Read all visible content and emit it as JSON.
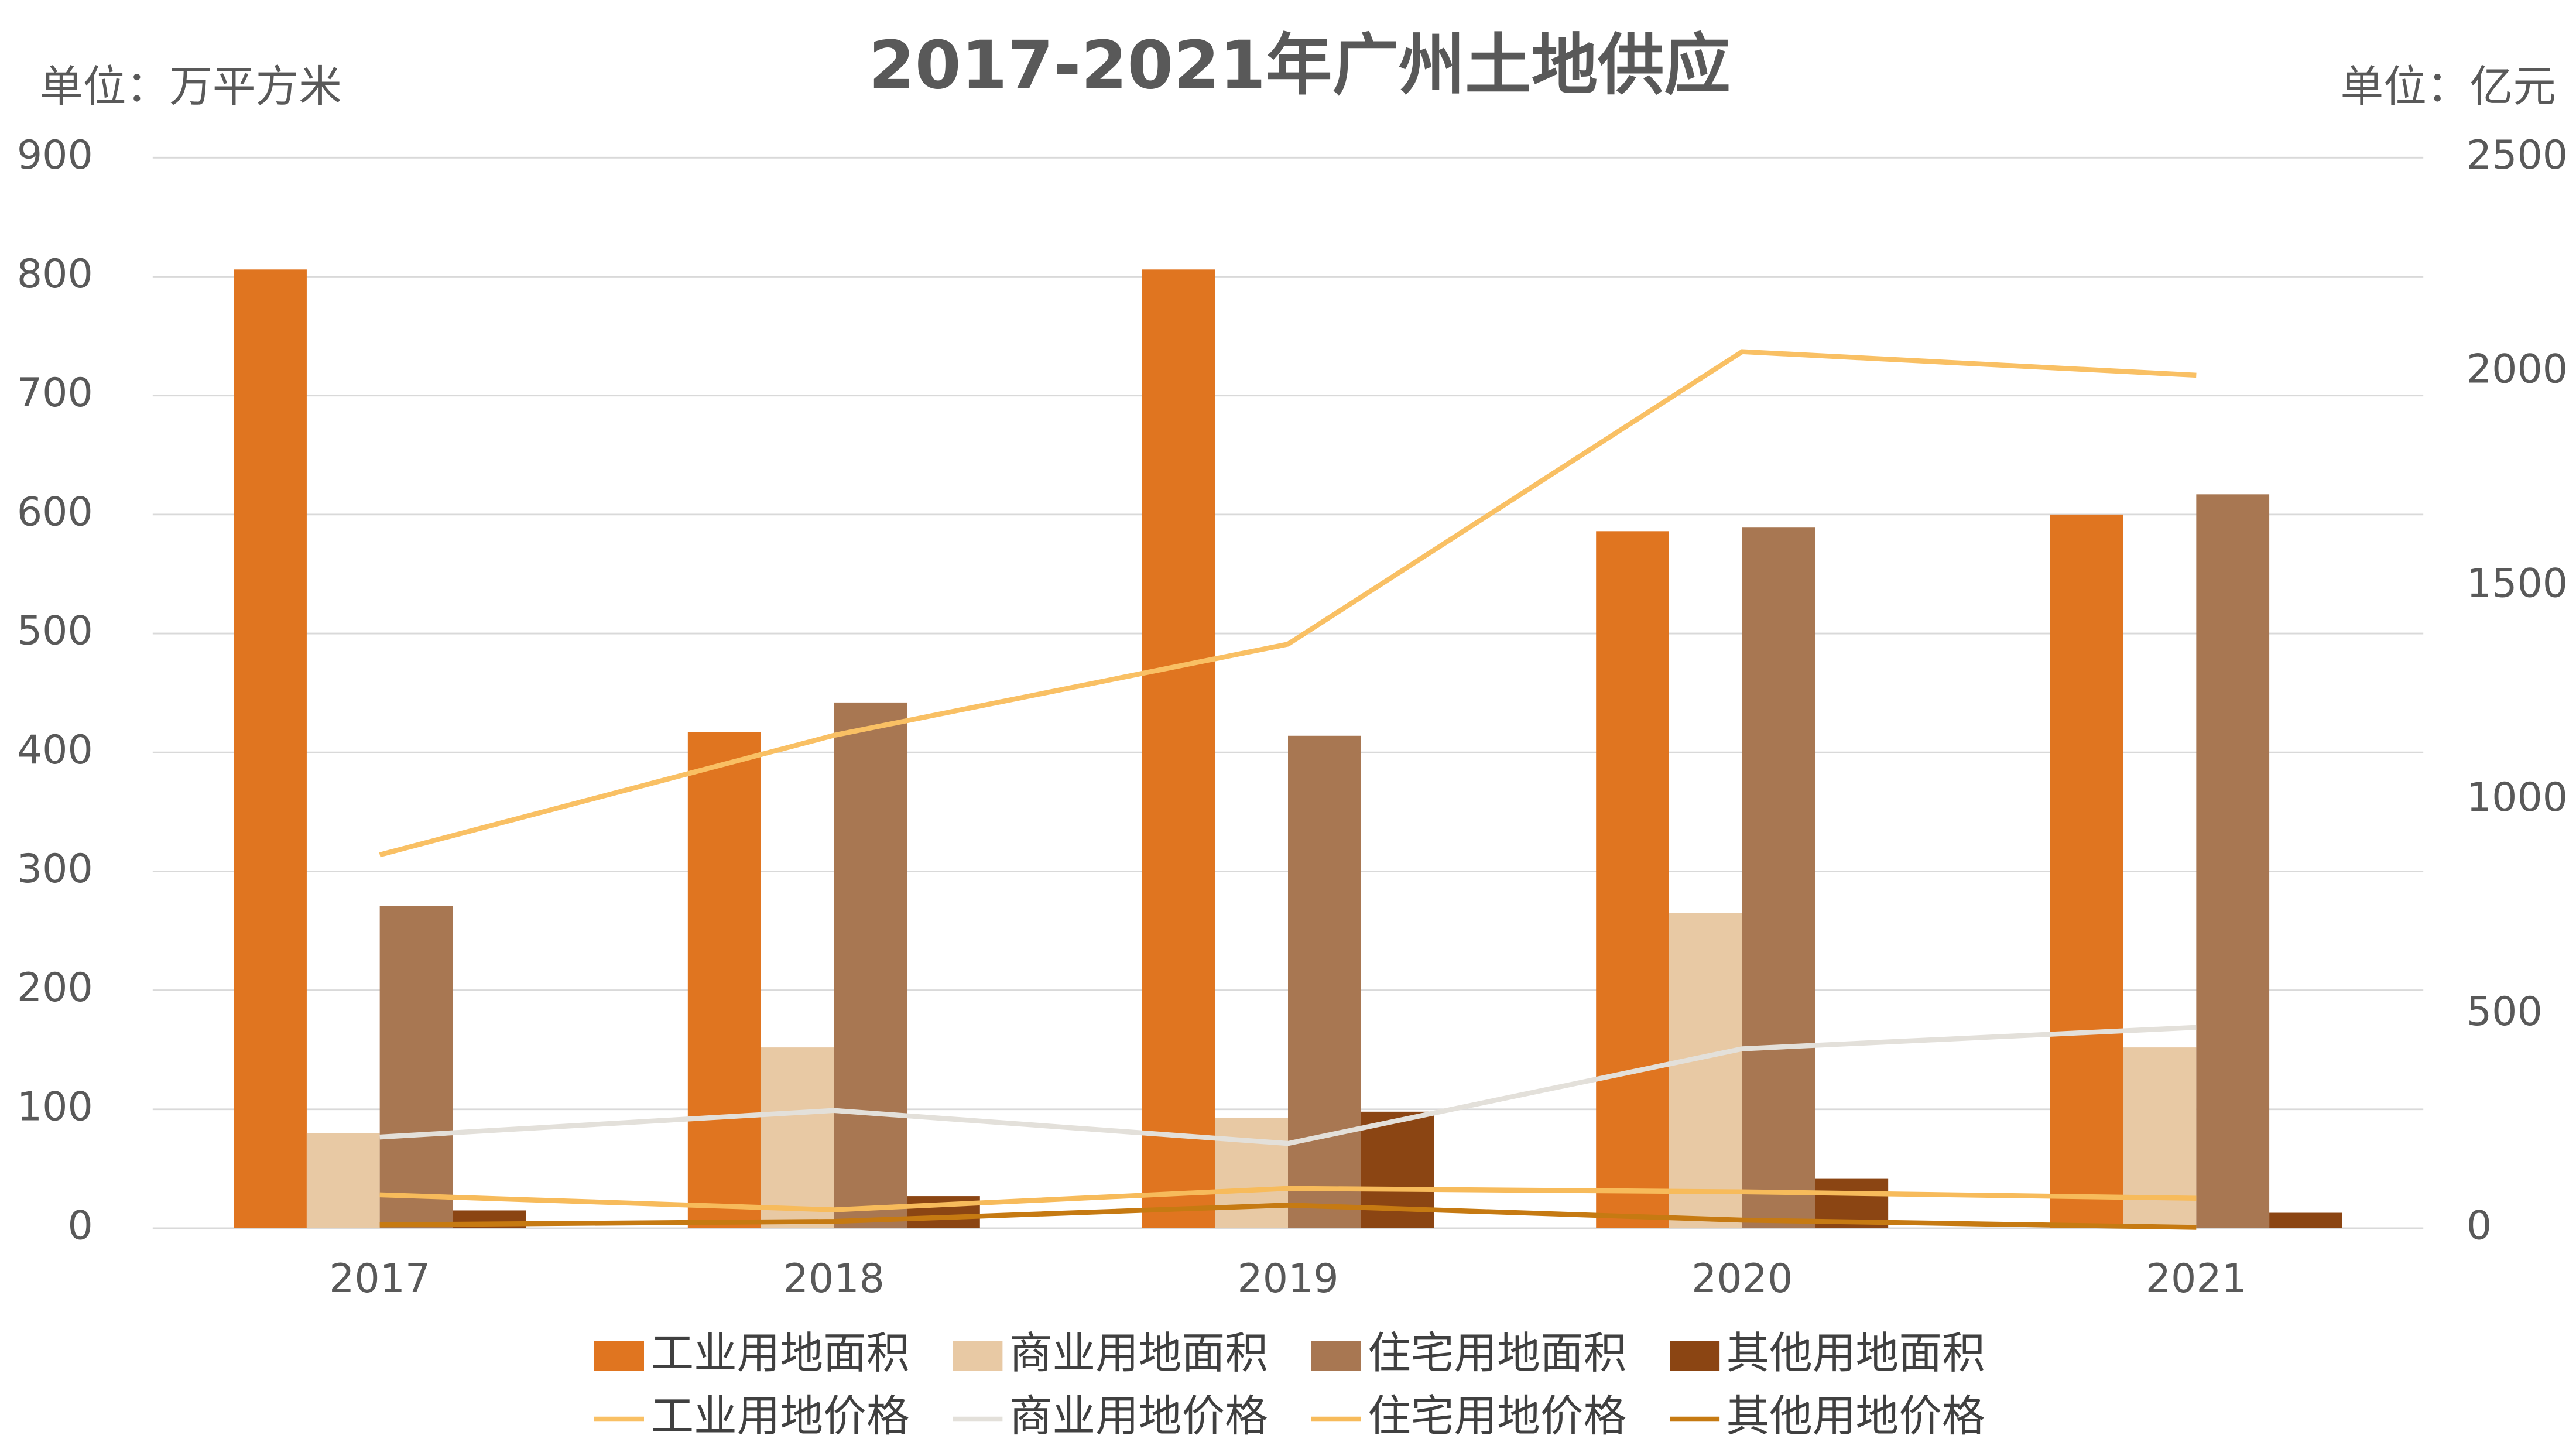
{
  "chart_data": {
    "type": "bar",
    "title": "2017-2021年广州土地供应",
    "y_unit_label": "单位：万平方米",
    "y2_unit_label": "单位：亿元",
    "categories": [
      "2017",
      "2018",
      "2019",
      "2020",
      "2021"
    ],
    "ylim": [
      0,
      900
    ],
    "yticks": [
      0,
      100,
      200,
      300,
      400,
      500,
      600,
      700,
      800,
      900
    ],
    "y2lim": [
      0,
      2500
    ],
    "y2ticks": [
      0,
      500,
      1000,
      1500,
      2000,
      2500
    ],
    "grid": true,
    "legend": "bottom",
    "series": [
      {
        "name": "工业用地面积",
        "type": "bar",
        "color": "#e07520",
        "values": [
          806,
          417,
          806,
          586,
          600
        ]
      },
      {
        "name": "商业用地面积",
        "type": "bar",
        "color": "#e8c9a4",
        "values": [
          80,
          152,
          93,
          265,
          152
        ]
      },
      {
        "name": "住宅用地面积",
        "type": "bar",
        "color": "#a87752",
        "values": [
          271,
          442,
          414,
          589,
          617
        ]
      },
      {
        "name": "其他用地面积",
        "type": "bar",
        "color": "#8b4513",
        "values": [
          15,
          27,
          98,
          42,
          13
        ]
      },
      {
        "name": "工业用地价格",
        "type": "line",
        "axis": "y2",
        "color": "#f9c064",
        "values": [
          872,
          1151,
          1364,
          2047,
          1992
        ]
      },
      {
        "name": "商业用地价格",
        "type": "line",
        "axis": "y2",
        "color": "#e3e0da",
        "values": [
          213,
          275,
          198,
          419,
          469
        ]
      },
      {
        "name": "住宅用地价格",
        "type": "line",
        "axis": "y2",
        "color": "#f7bb5b",
        "values": [
          78,
          43,
          93,
          85,
          70
        ]
      },
      {
        "name": "其他用地价格",
        "type": "line",
        "axis": "y2",
        "color": "#c67a12",
        "values": [
          8,
          16,
          54,
          19,
          2
        ]
      }
    ]
  }
}
